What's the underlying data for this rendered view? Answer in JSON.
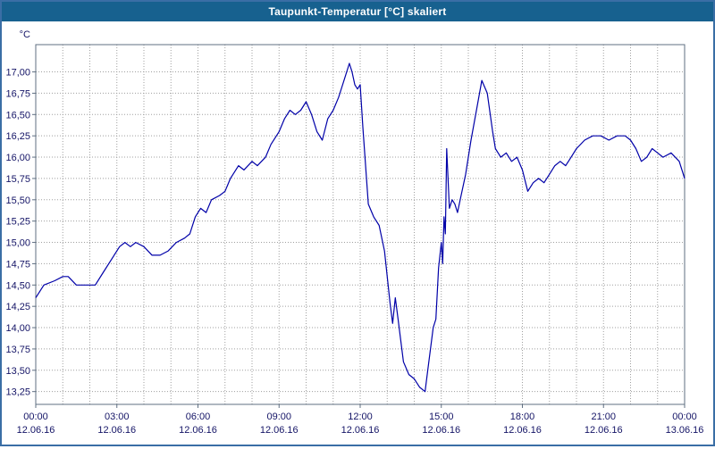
{
  "window": {
    "title": "Taupunkt-Temperatur [°C] skaliert"
  },
  "colors": {
    "titlebar": "#17618f",
    "window_border": "#3a6ea5",
    "grid": "#9f9f9f",
    "frame": "#5f6f82",
    "line": "#0000a8",
    "axis_text": "#141466"
  },
  "chart_data": {
    "type": "line",
    "title": "Taupunkt-Temperatur [°C] skaliert",
    "ylabel": "°C",
    "y_unit": "°C",
    "ylim": [
      13.1,
      17.32
    ],
    "xlim_hours": [
      0,
      24
    ],
    "grid": "dashed",
    "legend": "none",
    "y_ticks": [
      13.25,
      13.5,
      13.75,
      14.0,
      14.25,
      14.5,
      14.75,
      15.0,
      15.25,
      15.5,
      15.75,
      16.0,
      16.25,
      16.5,
      16.75,
      17.0
    ],
    "y_tick_labels": [
      "13,25",
      "13,50",
      "13,75",
      "14,00",
      "14,25",
      "14,50",
      "14,75",
      "15,00",
      "15,25",
      "15,50",
      "15,75",
      "16,00",
      "16,25",
      "16,50",
      "16,75",
      "17,00"
    ],
    "x_tick_hours": [
      0,
      3,
      6,
      9,
      12,
      15,
      18,
      21,
      24
    ],
    "x_tick_times": [
      "00:00",
      "03:00",
      "06:00",
      "09:00",
      "12:00",
      "15:00",
      "18:00",
      "21:00",
      "00:00"
    ],
    "x_tick_dates": [
      "12.06.16",
      "12.06.16",
      "12.06.16",
      "12.06.16",
      "12.06.16",
      "12.06.16",
      "12.06.16",
      "12.06.16",
      "13.06.16"
    ],
    "series": [
      {
        "name": "Taupunkt-Temperatur",
        "x": [
          0,
          0.3,
          0.7,
          1.0,
          1.2,
          1.5,
          1.8,
          2.2,
          2.5,
          2.8,
          3.1,
          3.3,
          3.5,
          3.7,
          4.0,
          4.3,
          4.6,
          4.9,
          5.2,
          5.5,
          5.7,
          5.9,
          6.1,
          6.3,
          6.5,
          6.8,
          7.0,
          7.2,
          7.5,
          7.7,
          8.0,
          8.2,
          8.5,
          8.7,
          9.0,
          9.2,
          9.4,
          9.6,
          9.8,
          10.0,
          10.2,
          10.4,
          10.6,
          10.8,
          11.0,
          11.2,
          11.4,
          11.6,
          11.7,
          11.8,
          11.9,
          12.0,
          12.1,
          12.3,
          12.5,
          12.7,
          12.9,
          13.1,
          13.2,
          13.3,
          13.4,
          13.6,
          13.8,
          14.0,
          14.2,
          14.4,
          14.5,
          14.7,
          14.8,
          14.9,
          15.0,
          15.05,
          15.1,
          15.15,
          15.2,
          15.3,
          15.4,
          15.5,
          15.6,
          15.7,
          15.9,
          16.1,
          16.3,
          16.5,
          16.7,
          16.9,
          17.0,
          17.2,
          17.4,
          17.6,
          17.8,
          18.0,
          18.2,
          18.4,
          18.6,
          18.8,
          19.0,
          19.2,
          19.4,
          19.6,
          19.8,
          20.0,
          20.3,
          20.6,
          20.9,
          21.2,
          21.5,
          21.8,
          22.0,
          22.2,
          22.4,
          22.6,
          22.8,
          23.0,
          23.2,
          23.5,
          23.8,
          24.0
        ],
        "y": [
          14.35,
          14.5,
          14.55,
          14.6,
          14.6,
          14.5,
          14.5,
          14.5,
          14.65,
          14.8,
          14.95,
          15.0,
          14.95,
          15.0,
          14.95,
          14.85,
          14.85,
          14.9,
          15.0,
          15.05,
          15.1,
          15.3,
          15.4,
          15.35,
          15.5,
          15.55,
          15.6,
          15.75,
          15.9,
          15.85,
          15.95,
          15.9,
          16.0,
          16.15,
          16.3,
          16.45,
          16.55,
          16.5,
          16.55,
          16.65,
          16.5,
          16.3,
          16.2,
          16.45,
          16.55,
          16.7,
          16.9,
          17.1,
          17.0,
          16.85,
          16.8,
          16.85,
          16.35,
          15.45,
          15.3,
          15.2,
          14.9,
          14.3,
          14.05,
          14.35,
          14.1,
          13.6,
          13.45,
          13.4,
          13.3,
          13.25,
          13.5,
          14.0,
          14.1,
          14.7,
          15.0,
          14.75,
          15.3,
          15.1,
          16.1,
          15.4,
          15.5,
          15.45,
          15.35,
          15.5,
          15.8,
          16.2,
          16.55,
          16.9,
          16.75,
          16.3,
          16.1,
          16.0,
          16.05,
          15.95,
          16.0,
          15.85,
          15.6,
          15.7,
          15.75,
          15.7,
          15.8,
          15.9,
          15.95,
          15.9,
          16.0,
          16.1,
          16.2,
          16.25,
          16.25,
          16.2,
          16.25,
          16.25,
          16.2,
          16.1,
          15.95,
          16.0,
          16.1,
          16.05,
          16.0,
          16.05,
          15.95,
          15.75
        ]
      }
    ]
  }
}
